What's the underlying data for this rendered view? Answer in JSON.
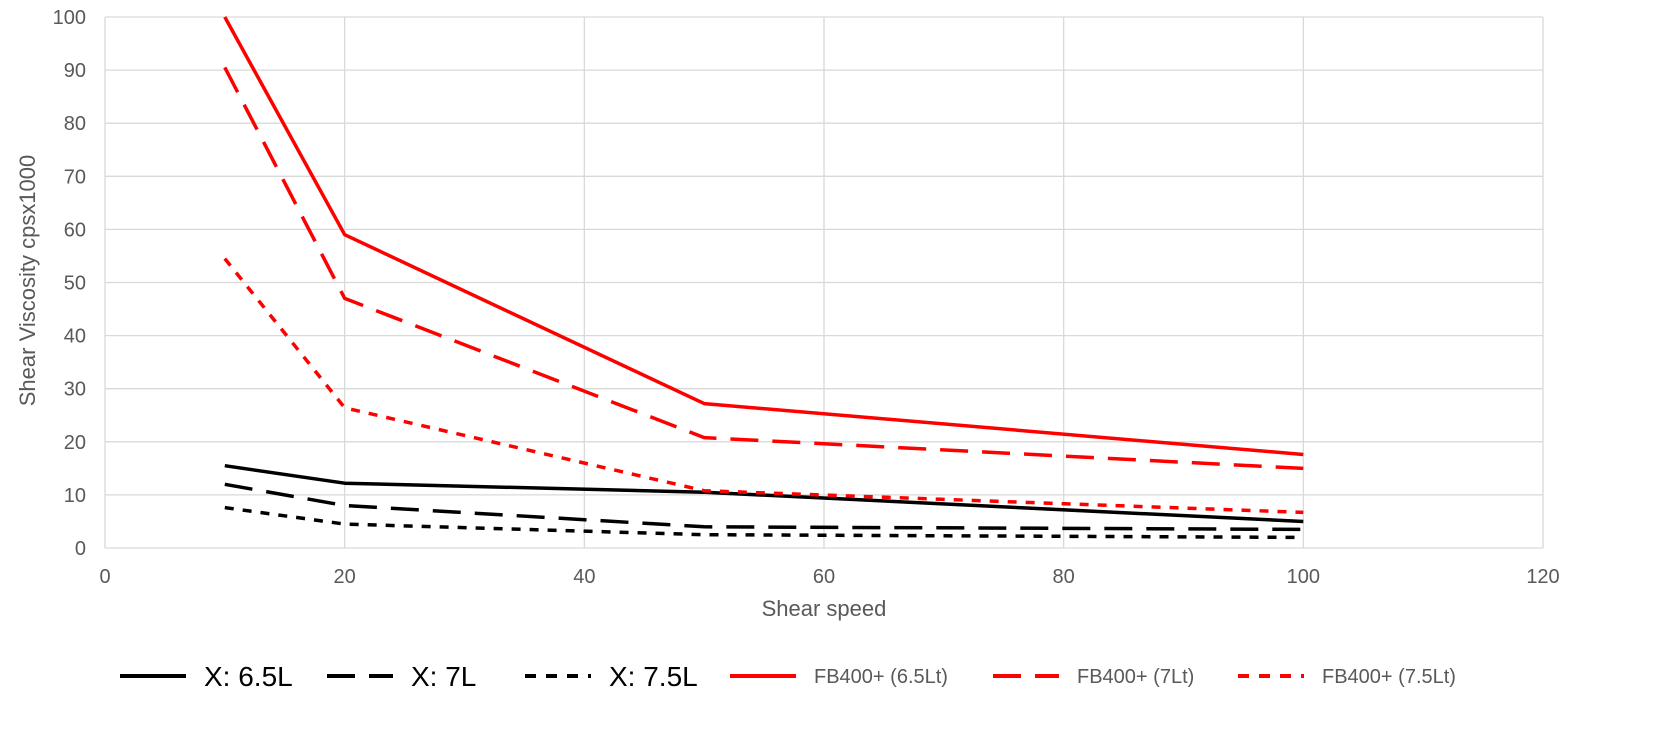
{
  "chart_data": {
    "type": "line",
    "xlabel": "Shear speed",
    "ylabel": "Shear Viscosity cpsx1000",
    "xlim": [
      0,
      120
    ],
    "ylim": [
      0,
      100
    ],
    "x_ticks": [
      0,
      20,
      40,
      60,
      80,
      100,
      120
    ],
    "y_ticks": [
      0,
      10,
      20,
      30,
      40,
      50,
      60,
      70,
      80,
      90,
      100
    ],
    "grid": true,
    "legend_position": "bottom",
    "series": [
      {
        "name": "X: 6.5L",
        "color": "#000000",
        "dash": "solid",
        "x": [
          10,
          20,
          50,
          100
        ],
        "y": [
          15.5,
          12.2,
          10.5,
          5
        ]
      },
      {
        "name": "X: 7L",
        "color": "#000000",
        "dash": "long-dash",
        "x": [
          10,
          20,
          50,
          100
        ],
        "y": [
          12,
          8,
          4,
          3.5
        ]
      },
      {
        "name": "X: 7.5L",
        "color": "#000000",
        "dash": "short-dash",
        "x": [
          10,
          20,
          50,
          100
        ],
        "y": [
          7.6,
          4.5,
          2.5,
          2
        ]
      },
      {
        "name": "FB400+ (6.5Lt)",
        "color": "#ff0000",
        "dash": "solid",
        "x": [
          10,
          20,
          50,
          100
        ],
        "y": [
          100,
          59,
          27.2,
          17.6
        ]
      },
      {
        "name": "FB400+ (7Lt)",
        "color": "#ff0000",
        "dash": "long-dash",
        "x": [
          10,
          20,
          50,
          100
        ],
        "y": [
          90.5,
          47,
          20.8,
          15
        ]
      },
      {
        "name": "FB400+ (7.5Lt)",
        "color": "#ff0000",
        "dash": "short-dash",
        "x": [
          10,
          20,
          50,
          100
        ],
        "y": [
          54.5,
          26.4,
          10.8,
          6.7
        ]
      }
    ]
  }
}
